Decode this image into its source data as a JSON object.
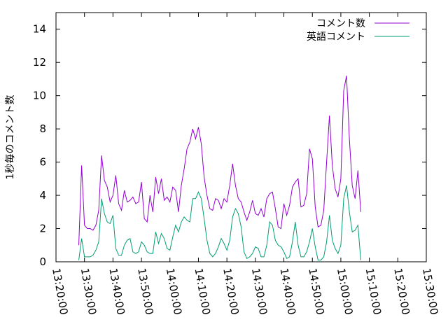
{
  "chart_data": {
    "type": "line",
    "ylabel": "1秒毎のコメント数",
    "ylim": [
      0,
      15
    ],
    "y_ticks": [
      0,
      2,
      4,
      6,
      8,
      10,
      12,
      14
    ],
    "xlim": [
      "13:20:00",
      "15:30:00"
    ],
    "x_ticks": [
      "13:20:00",
      "13:30:00",
      "13:40:00",
      "13:50:00",
      "14:00:00",
      "14:10:00",
      "14:20:00",
      "14:30:00",
      "14:40:00",
      "14:50:00",
      "15:00:00",
      "15:10:00",
      "15:20:00",
      "15:30:00"
    ],
    "legend_position": "top-right",
    "grid": false,
    "series": [
      {
        "name": "コメント数",
        "color": "#9400d3",
        "points": [
          [
            "13:28:00",
            1.0
          ],
          [
            "13:29:00",
            5.8
          ],
          [
            "13:30:00",
            2.2
          ],
          [
            "13:31:00",
            2.0
          ],
          [
            "13:32:00",
            2.0
          ],
          [
            "13:33:00",
            1.9
          ],
          [
            "13:34:00",
            2.2
          ],
          [
            "13:35:00",
            3.1
          ],
          [
            "13:36:00",
            6.4
          ],
          [
            "13:37:00",
            4.9
          ],
          [
            "13:38:00",
            4.5
          ],
          [
            "13:39:00",
            3.6
          ],
          [
            "13:40:00",
            4.0
          ],
          [
            "13:41:00",
            5.2
          ],
          [
            "13:42:00",
            3.5
          ],
          [
            "13:43:00",
            3.1
          ],
          [
            "13:44:00",
            4.3
          ],
          [
            "13:45:00",
            3.6
          ],
          [
            "13:46:00",
            3.7
          ],
          [
            "13:47:00",
            3.9
          ],
          [
            "13:48:00",
            3.5
          ],
          [
            "13:49:00",
            3.6
          ],
          [
            "13:50:00",
            4.8
          ],
          [
            "13:51:00",
            2.6
          ],
          [
            "13:52:00",
            2.4
          ],
          [
            "13:53:00",
            4.0
          ],
          [
            "13:54:00",
            3.0
          ],
          [
            "13:55:00",
            5.1
          ],
          [
            "13:56:00",
            4.1
          ],
          [
            "13:57:00",
            5.0
          ],
          [
            "13:58:00",
            3.7
          ],
          [
            "13:59:00",
            3.9
          ],
          [
            "14:00:00",
            3.6
          ],
          [
            "14:01:00",
            4.5
          ],
          [
            "14:02:00",
            4.3
          ],
          [
            "14:03:00",
            3.0
          ],
          [
            "14:04:00",
            4.6
          ],
          [
            "14:05:00",
            5.6
          ],
          [
            "14:06:00",
            6.8
          ],
          [
            "14:07:00",
            7.2
          ],
          [
            "14:08:00",
            8.0
          ],
          [
            "14:09:00",
            7.4
          ],
          [
            "14:10:00",
            8.1
          ],
          [
            "14:11:00",
            7.1
          ],
          [
            "14:12:00",
            5.1
          ],
          [
            "14:13:00",
            4.0
          ],
          [
            "14:14:00",
            3.2
          ],
          [
            "14:15:00",
            3.1
          ],
          [
            "14:16:00",
            3.8
          ],
          [
            "14:17:00",
            3.7
          ],
          [
            "14:18:00",
            3.2
          ],
          [
            "14:19:00",
            3.8
          ],
          [
            "14:20:00",
            3.6
          ],
          [
            "14:21:00",
            4.6
          ],
          [
            "14:22:00",
            5.9
          ],
          [
            "14:23:00",
            4.6
          ],
          [
            "14:24:00",
            3.8
          ],
          [
            "14:25:00",
            3.6
          ],
          [
            "14:26:00",
            3.0
          ],
          [
            "14:27:00",
            2.5
          ],
          [
            "14:28:00",
            3.0
          ],
          [
            "14:29:00",
            3.7
          ],
          [
            "14:30:00",
            2.9
          ],
          [
            "14:31:00",
            2.8
          ],
          [
            "14:32:00",
            3.2
          ],
          [
            "14:33:00",
            2.7
          ],
          [
            "14:34:00",
            3.8
          ],
          [
            "14:35:00",
            4.1
          ],
          [
            "14:36:00",
            4.2
          ],
          [
            "14:37:00",
            3.2
          ],
          [
            "14:38:00",
            2.1
          ],
          [
            "14:39:00",
            2.0
          ],
          [
            "14:40:00",
            3.5
          ],
          [
            "14:41:00",
            2.8
          ],
          [
            "14:42:00",
            3.4
          ],
          [
            "14:43:00",
            4.5
          ],
          [
            "14:44:00",
            4.8
          ],
          [
            "14:45:00",
            5.0
          ],
          [
            "14:46:00",
            3.3
          ],
          [
            "14:47:00",
            3.4
          ],
          [
            "14:48:00",
            4.1
          ],
          [
            "14:49:00",
            6.8
          ],
          [
            "14:50:00",
            6.2
          ],
          [
            "14:51:00",
            3.3
          ],
          [
            "14:52:00",
            2.1
          ],
          [
            "14:53:00",
            2.2
          ],
          [
            "14:54:00",
            3.1
          ],
          [
            "14:55:00",
            6.0
          ],
          [
            "14:56:00",
            8.8
          ],
          [
            "14:57:00",
            5.8
          ],
          [
            "14:58:00",
            4.4
          ],
          [
            "14:59:00",
            3.9
          ],
          [
            "15:00:00",
            5.0
          ],
          [
            "15:01:00",
            10.3
          ],
          [
            "15:02:00",
            11.2
          ],
          [
            "15:03:00",
            7.4
          ],
          [
            "15:04:00",
            4.6
          ],
          [
            "15:05:00",
            3.8
          ],
          [
            "15:06:00",
            5.5
          ],
          [
            "15:07:00",
            3.0
          ]
        ]
      },
      {
        "name": "英語コメント",
        "color": "#009e73",
        "points": [
          [
            "13:28:00",
            0.1
          ],
          [
            "13:29:00",
            1.4
          ],
          [
            "13:30:00",
            0.3
          ],
          [
            "13:31:00",
            0.3
          ],
          [
            "13:32:00",
            0.3
          ],
          [
            "13:33:00",
            0.4
          ],
          [
            "13:34:00",
            0.7
          ],
          [
            "13:35:00",
            1.2
          ],
          [
            "13:36:00",
            3.8
          ],
          [
            "13:37:00",
            2.9
          ],
          [
            "13:38:00",
            2.4
          ],
          [
            "13:39:00",
            2.3
          ],
          [
            "13:40:00",
            2.8
          ],
          [
            "13:41:00",
            0.8
          ],
          [
            "13:42:00",
            0.4
          ],
          [
            "13:43:00",
            0.4
          ],
          [
            "13:44:00",
            1.0
          ],
          [
            "13:45:00",
            1.3
          ],
          [
            "13:46:00",
            1.4
          ],
          [
            "13:47:00",
            0.6
          ],
          [
            "13:48:00",
            0.5
          ],
          [
            "13:49:00",
            0.6
          ],
          [
            "13:50:00",
            1.2
          ],
          [
            "13:51:00",
            1.0
          ],
          [
            "13:52:00",
            0.6
          ],
          [
            "13:53:00",
            0.5
          ],
          [
            "13:54:00",
            0.5
          ],
          [
            "13:55:00",
            1.8
          ],
          [
            "13:56:00",
            1.1
          ],
          [
            "13:57:00",
            1.7
          ],
          [
            "13:58:00",
            1.4
          ],
          [
            "13:59:00",
            0.8
          ],
          [
            "14:00:00",
            0.7
          ],
          [
            "14:01:00",
            1.5
          ],
          [
            "14:02:00",
            2.2
          ],
          [
            "14:03:00",
            1.8
          ],
          [
            "14:04:00",
            2.4
          ],
          [
            "14:05:00",
            2.7
          ],
          [
            "14:06:00",
            2.5
          ],
          [
            "14:07:00",
            2.4
          ],
          [
            "14:08:00",
            3.8
          ],
          [
            "14:09:00",
            3.8
          ],
          [
            "14:10:00",
            4.2
          ],
          [
            "14:11:00",
            3.8
          ],
          [
            "14:12:00",
            2.6
          ],
          [
            "14:13:00",
            1.3
          ],
          [
            "14:14:00",
            0.5
          ],
          [
            "14:15:00",
            0.3
          ],
          [
            "14:16:00",
            0.5
          ],
          [
            "14:17:00",
            0.9
          ],
          [
            "14:18:00",
            1.4
          ],
          [
            "14:19:00",
            1.1
          ],
          [
            "14:20:00",
            0.7
          ],
          [
            "14:21:00",
            1.3
          ],
          [
            "14:22:00",
            2.7
          ],
          [
            "14:23:00",
            3.2
          ],
          [
            "14:24:00",
            2.9
          ],
          [
            "14:25:00",
            2.1
          ],
          [
            "14:26:00",
            0.6
          ],
          [
            "14:27:00",
            0.2
          ],
          [
            "14:28:00",
            0.3
          ],
          [
            "14:29:00",
            0.5
          ],
          [
            "14:30:00",
            0.9
          ],
          [
            "14:31:00",
            0.8
          ],
          [
            "14:32:00",
            0.3
          ],
          [
            "14:33:00",
            0.3
          ],
          [
            "14:34:00",
            1.0
          ],
          [
            "14:35:00",
            2.4
          ],
          [
            "14:36:00",
            2.2
          ],
          [
            "14:37:00",
            1.3
          ],
          [
            "14:38:00",
            1.0
          ],
          [
            "14:39:00",
            0.9
          ],
          [
            "14:40:00",
            0.6
          ],
          [
            "14:41:00",
            0.2
          ],
          [
            "14:42:00",
            0.3
          ],
          [
            "14:43:00",
            1.2
          ],
          [
            "14:44:00",
            2.4
          ],
          [
            "14:45:00",
            1.0
          ],
          [
            "14:46:00",
            0.3
          ],
          [
            "14:47:00",
            0.3
          ],
          [
            "14:48:00",
            0.6
          ],
          [
            "14:49:00",
            1.2
          ],
          [
            "14:50:00",
            2.0
          ],
          [
            "14:51:00",
            0.9
          ],
          [
            "14:52:00",
            0.1
          ],
          [
            "14:53:00",
            0.1
          ],
          [
            "14:54:00",
            0.3
          ],
          [
            "14:55:00",
            1.2
          ],
          [
            "14:56:00",
            2.8
          ],
          [
            "14:57:00",
            1.3
          ],
          [
            "14:58:00",
            0.8
          ],
          [
            "14:59:00",
            0.5
          ],
          [
            "15:00:00",
            1.0
          ],
          [
            "15:01:00",
            3.8
          ],
          [
            "15:02:00",
            4.6
          ],
          [
            "15:03:00",
            3.0
          ],
          [
            "15:04:00",
            1.8
          ],
          [
            "15:05:00",
            1.9
          ],
          [
            "15:06:00",
            2.2
          ],
          [
            "15:07:00",
            0.1
          ]
        ]
      }
    ]
  }
}
